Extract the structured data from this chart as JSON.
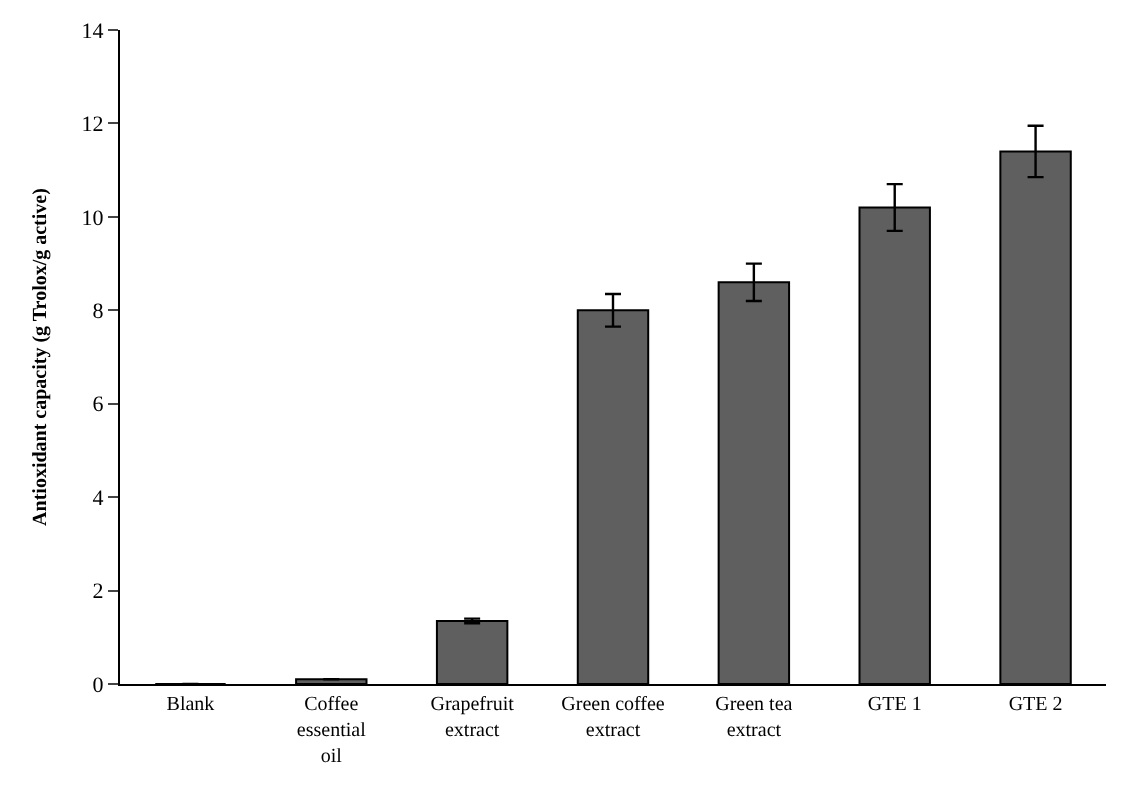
{
  "chart_data": {
    "type": "bar",
    "ylabel": "Antioxidant capacity (g Trolox/g active)",
    "categories": [
      "Blank",
      "Coffee essential oil",
      "Grapefruit extract",
      "Green coffee extract",
      "Green tea extract",
      "GTE 1",
      "GTE 2"
    ],
    "values": [
      0,
      0.1,
      1.35,
      8.0,
      8.6,
      10.2,
      11.4
    ],
    "errors": [
      null,
      null,
      0.05,
      0.35,
      0.4,
      0.5,
      0.55
    ],
    "color": "#5f5f5f",
    "ylim": [
      0,
      14
    ],
    "yticks": [
      0,
      2,
      4,
      6,
      8,
      10,
      12,
      14
    ],
    "grid": false
  }
}
